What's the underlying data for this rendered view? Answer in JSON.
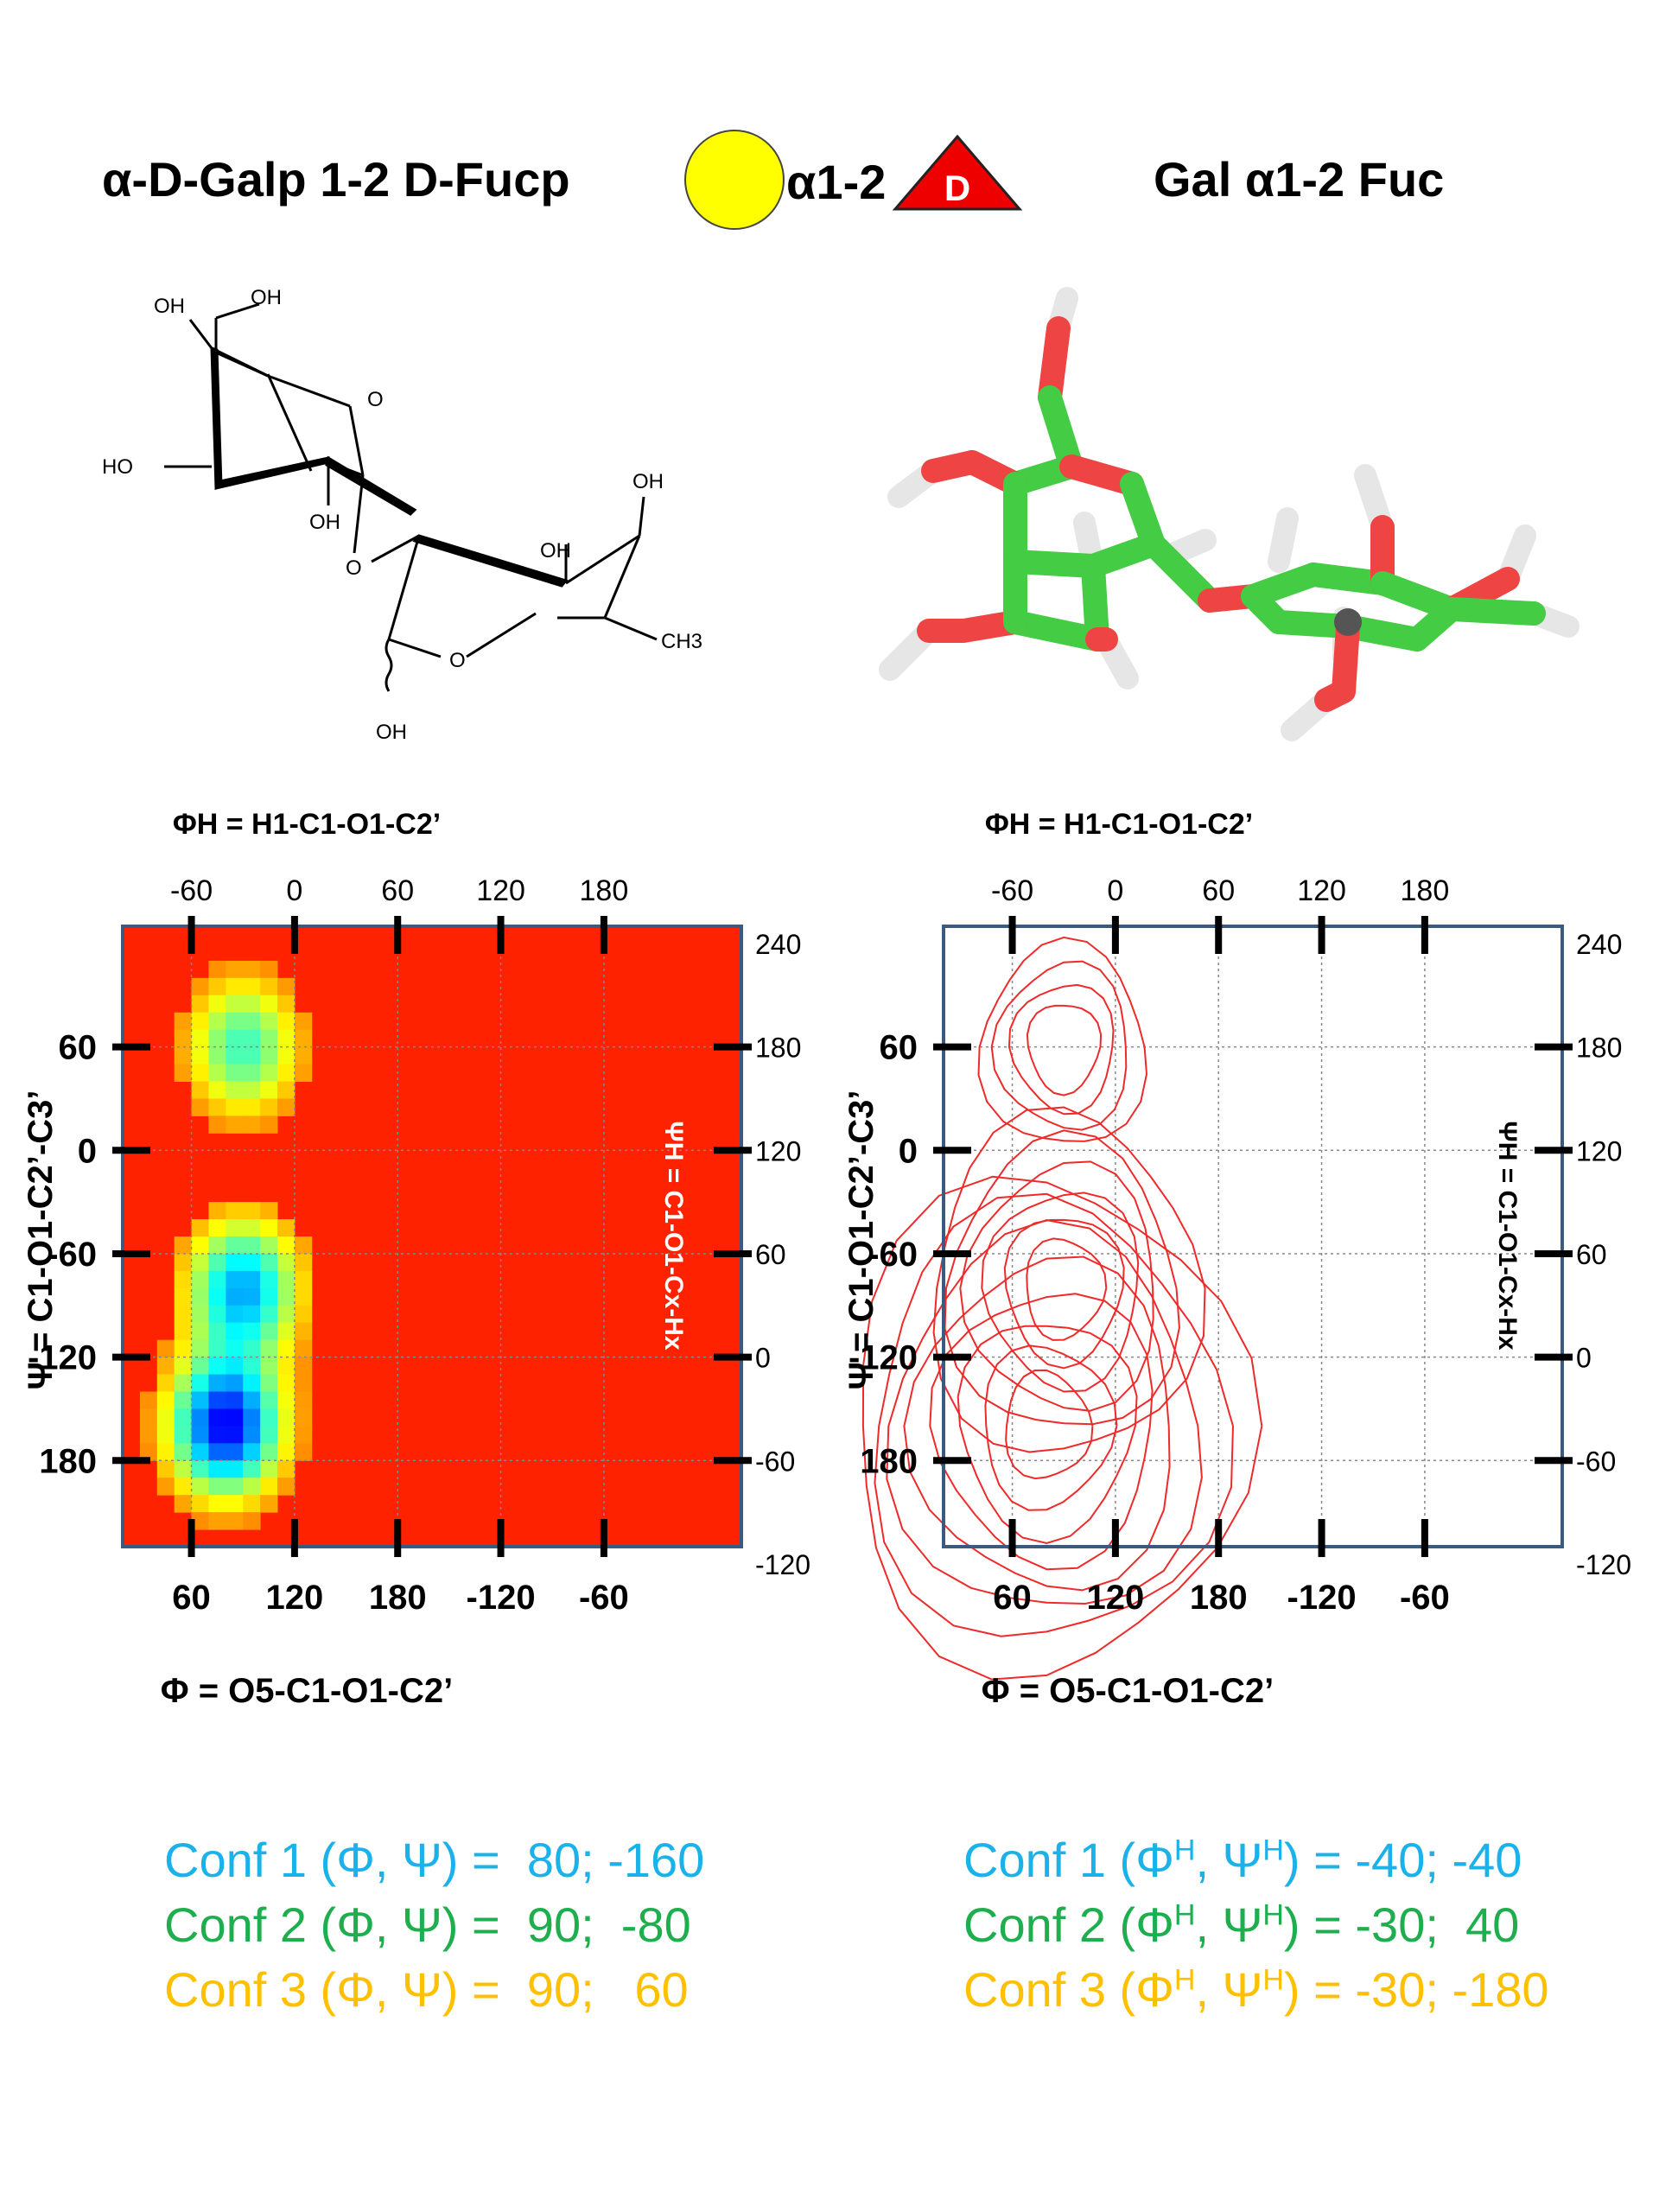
{
  "header": {
    "left_title": "α-D-Galp 1-2 D-Fucp",
    "center_linkage": "α1-2",
    "fucose_letter": "D",
    "right_title": "Gal α1-2 Fuc"
  },
  "colors": {
    "galactose_yellow": "#ffff00",
    "fucose_red": "#ee0000",
    "conf1": "#1ab2e8",
    "conf2": "#1fae4e",
    "conf3": "#ffc000",
    "heatmap_background": "#ff2200",
    "contour": "#ee2a2a",
    "frame": "#3b5a80"
  },
  "structure_2d": {
    "labels": [
      "OH",
      "OH",
      "HO",
      "O",
      "OH",
      "O",
      "OH",
      "OH",
      "O",
      "CH3",
      "OH"
    ]
  },
  "structure_3d": {
    "name": "stick model Gal α1-2 Fuc"
  },
  "chart_data": [
    {
      "type": "heatmap",
      "title": "",
      "x_top_label": "ΦH = H1-C1-O1-C2’",
      "x_bottom_label": "Φ = O5-C1-O1-C2’",
      "y_left_label": "Ψ = C1-O1-C2’-C3’",
      "y_right_label": "ΨH = C1-O1-Cx-Hx",
      "x_top_ticks": [
        "-60",
        "0",
        "60",
        "120",
        "180"
      ],
      "x_bottom_ticks": [
        "60",
        "120",
        "180",
        "-120",
        "-60"
      ],
      "y_left_ticks": [
        "60",
        "0",
        "-60",
        "-120",
        "180"
      ],
      "y_right_ticks": [
        "240",
        "180",
        "120",
        "60",
        "0",
        "-60",
        "-120"
      ],
      "x_range_phi": [
        20,
        380
      ],
      "y_range_psi": [
        130,
        -230
      ],
      "grid": true,
      "colormap": "jet",
      "density_peaks": [
        {
          "phi": 80,
          "psi": -160,
          "weight": 1.0
        },
        {
          "phi": 90,
          "psi": -80,
          "weight": 0.75
        },
        {
          "phi": 90,
          "psi": 60,
          "weight": 0.55
        }
      ]
    },
    {
      "type": "contour",
      "title": "",
      "x_top_label": "ΦH = H1-C1-O1-C2’",
      "x_bottom_label": "Φ = O5-C1-O1-C2’",
      "y_left_label": "Ψ = C1-O1-C2’-C3’",
      "y_right_label": "ΨH = C1-O1-Cx-Hx",
      "x_top_ticks": [
        "-60",
        "0",
        "60",
        "120",
        "180"
      ],
      "x_bottom_ticks": [
        "60",
        "120",
        "180",
        "-120",
        "-60"
      ],
      "y_left_ticks": [
        "60",
        "0",
        "-60",
        "-120",
        "180"
      ],
      "y_right_ticks": [
        "240",
        "180",
        "120",
        "60",
        "0",
        "-60",
        "-120"
      ],
      "x_range_phi": [
        20,
        380
      ],
      "y_range_psi": [
        130,
        -230
      ],
      "grid": true,
      "contour_centers": [
        {
          "phi": 80,
          "psi": -160,
          "levels": 8
        },
        {
          "phi": 90,
          "psi": -80,
          "levels": 6
        },
        {
          "phi": 90,
          "psi": 60,
          "levels": 4
        }
      ]
    }
  ],
  "conformations_left": [
    {
      "label": "Conf 1 (Φ, Ψ) =",
      "value": "80; -160"
    },
    {
      "label": "Conf 2 (Φ, Ψ) =",
      "value": "90;  -80"
    },
    {
      "label": "Conf 3 (Φ, Ψ) =",
      "value": "90;   60"
    }
  ],
  "conformations_right": [
    {
      "label_pre": "Conf 1 (Φ",
      "sup1": "H",
      "label_mid": ", Ψ",
      "sup2": "H",
      "label_post": ") =",
      "value": "-40; -40"
    },
    {
      "label_pre": "Conf 2 (Φ",
      "sup1": "H",
      "label_mid": ", Ψ",
      "sup2": "H",
      "label_post": ") =",
      "value": "-30;  40"
    },
    {
      "label_pre": "Conf 3 (Φ",
      "sup1": "H",
      "label_mid": ", Ψ",
      "sup2": "H",
      "label_post": ") =",
      "value": "-30; -180"
    }
  ]
}
